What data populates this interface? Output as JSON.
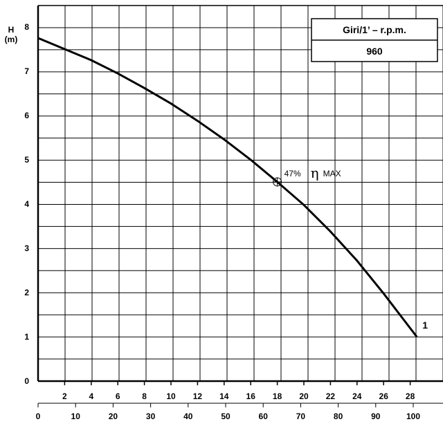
{
  "chart_data": {
    "type": "line",
    "ylabel": "H",
    "yunit": "(m)",
    "ylim": [
      0,
      8.5
    ],
    "yticks": [
      0,
      1,
      2,
      3,
      4,
      5,
      6,
      7,
      8
    ],
    "xlim": [
      0,
      29.5
    ],
    "x_primary_ticks": [
      "2",
      "4",
      "6",
      "8",
      "10",
      "12",
      "14",
      "16",
      "18",
      "20",
      "22",
      "24",
      "26",
      "28"
    ],
    "x_secondary_ticks": [
      "0",
      "10",
      "20",
      "30",
      "40",
      "50",
      "60",
      "70",
      "80",
      "90",
      "100"
    ],
    "legend": {
      "header": "Giri/1’ – r.p.m.",
      "value": "960",
      "placement": "top-right"
    },
    "grid": true,
    "series": [
      {
        "name": "1",
        "x": [
          0,
          2,
          4,
          6,
          8,
          10,
          12,
          14,
          16,
          18,
          20,
          22,
          24,
          26,
          28.5
        ],
        "y": [
          7.75,
          7.5,
          7.25,
          6.95,
          6.62,
          6.27,
          5.88,
          5.46,
          5.0,
          4.5,
          3.98,
          3.38,
          2.72,
          1.98,
          1.0
        ]
      }
    ],
    "annotation": {
      "x": 18,
      "y": 4.5,
      "percent": "47%",
      "symbol": "η",
      "text": "MAX"
    }
  }
}
